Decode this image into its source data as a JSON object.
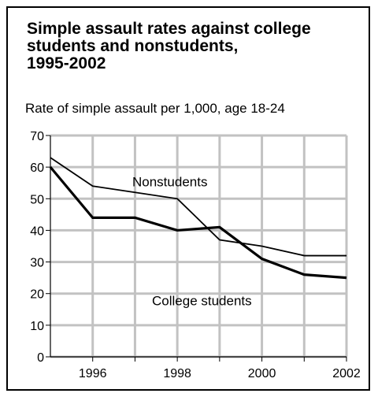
{
  "chart_data": {
    "type": "line",
    "title": "Simple assault rates against college\nstudents and nonstudents,\n1995-2002",
    "subtitle": "Rate of simple assault per 1,000, age 18-24",
    "x": [
      1995,
      1996,
      1997,
      1998,
      1999,
      2000,
      2001,
      2002
    ],
    "xlim": [
      1995,
      2002
    ],
    "ylim": [
      0,
      70
    ],
    "x_ticks": [
      "1996",
      "1998",
      "2000",
      "2002"
    ],
    "y_ticks": [
      "0",
      "10",
      "20",
      "30",
      "40",
      "50",
      "60",
      "70"
    ],
    "grid": true,
    "series": [
      {
        "name": "Nonstudents",
        "values": [
          63,
          54,
          52,
          50,
          37,
          35,
          32,
          32
        ],
        "color": "#000000"
      },
      {
        "name": "College students",
        "values": [
          60,
          44,
          44,
          40,
          41,
          31,
          26,
          25
        ],
        "color": "#000000"
      }
    ]
  }
}
